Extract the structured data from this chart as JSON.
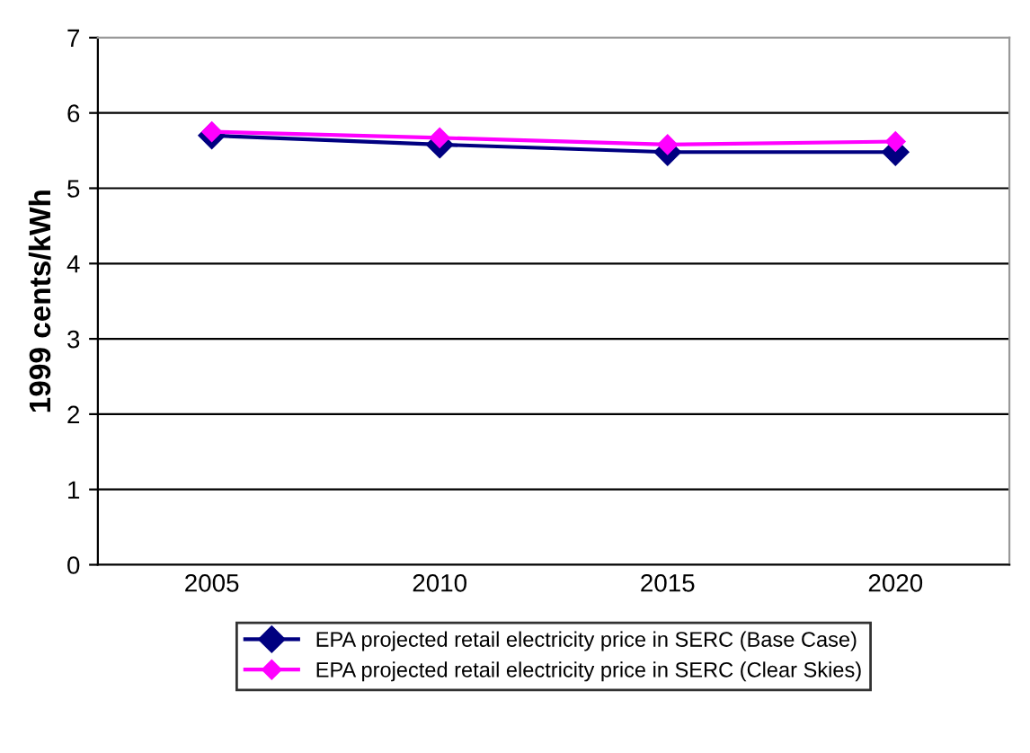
{
  "chart_data": {
    "type": "line",
    "ylabel": "1999 cents/kWh",
    "categories": [
      "2005",
      "2010",
      "2015",
      "2020"
    ],
    "series": [
      {
        "name": "EPA projected retail electricity price in SERC (Base Case)",
        "color": "#000080",
        "values": [
          5.7,
          5.58,
          5.48,
          5.48
        ]
      },
      {
        "name": "EPA projected retail electricity price in SERC (Clear Skies)",
        "color": "#ff00ff",
        "values": [
          5.75,
          5.67,
          5.58,
          5.62
        ]
      }
    ],
    "ylim": [
      0,
      7
    ],
    "yticks": [
      0,
      1,
      2,
      3,
      4,
      5,
      6,
      7
    ],
    "grid": "y",
    "legend": "bottom",
    "marker": "diamond",
    "line_style": "solid"
  }
}
